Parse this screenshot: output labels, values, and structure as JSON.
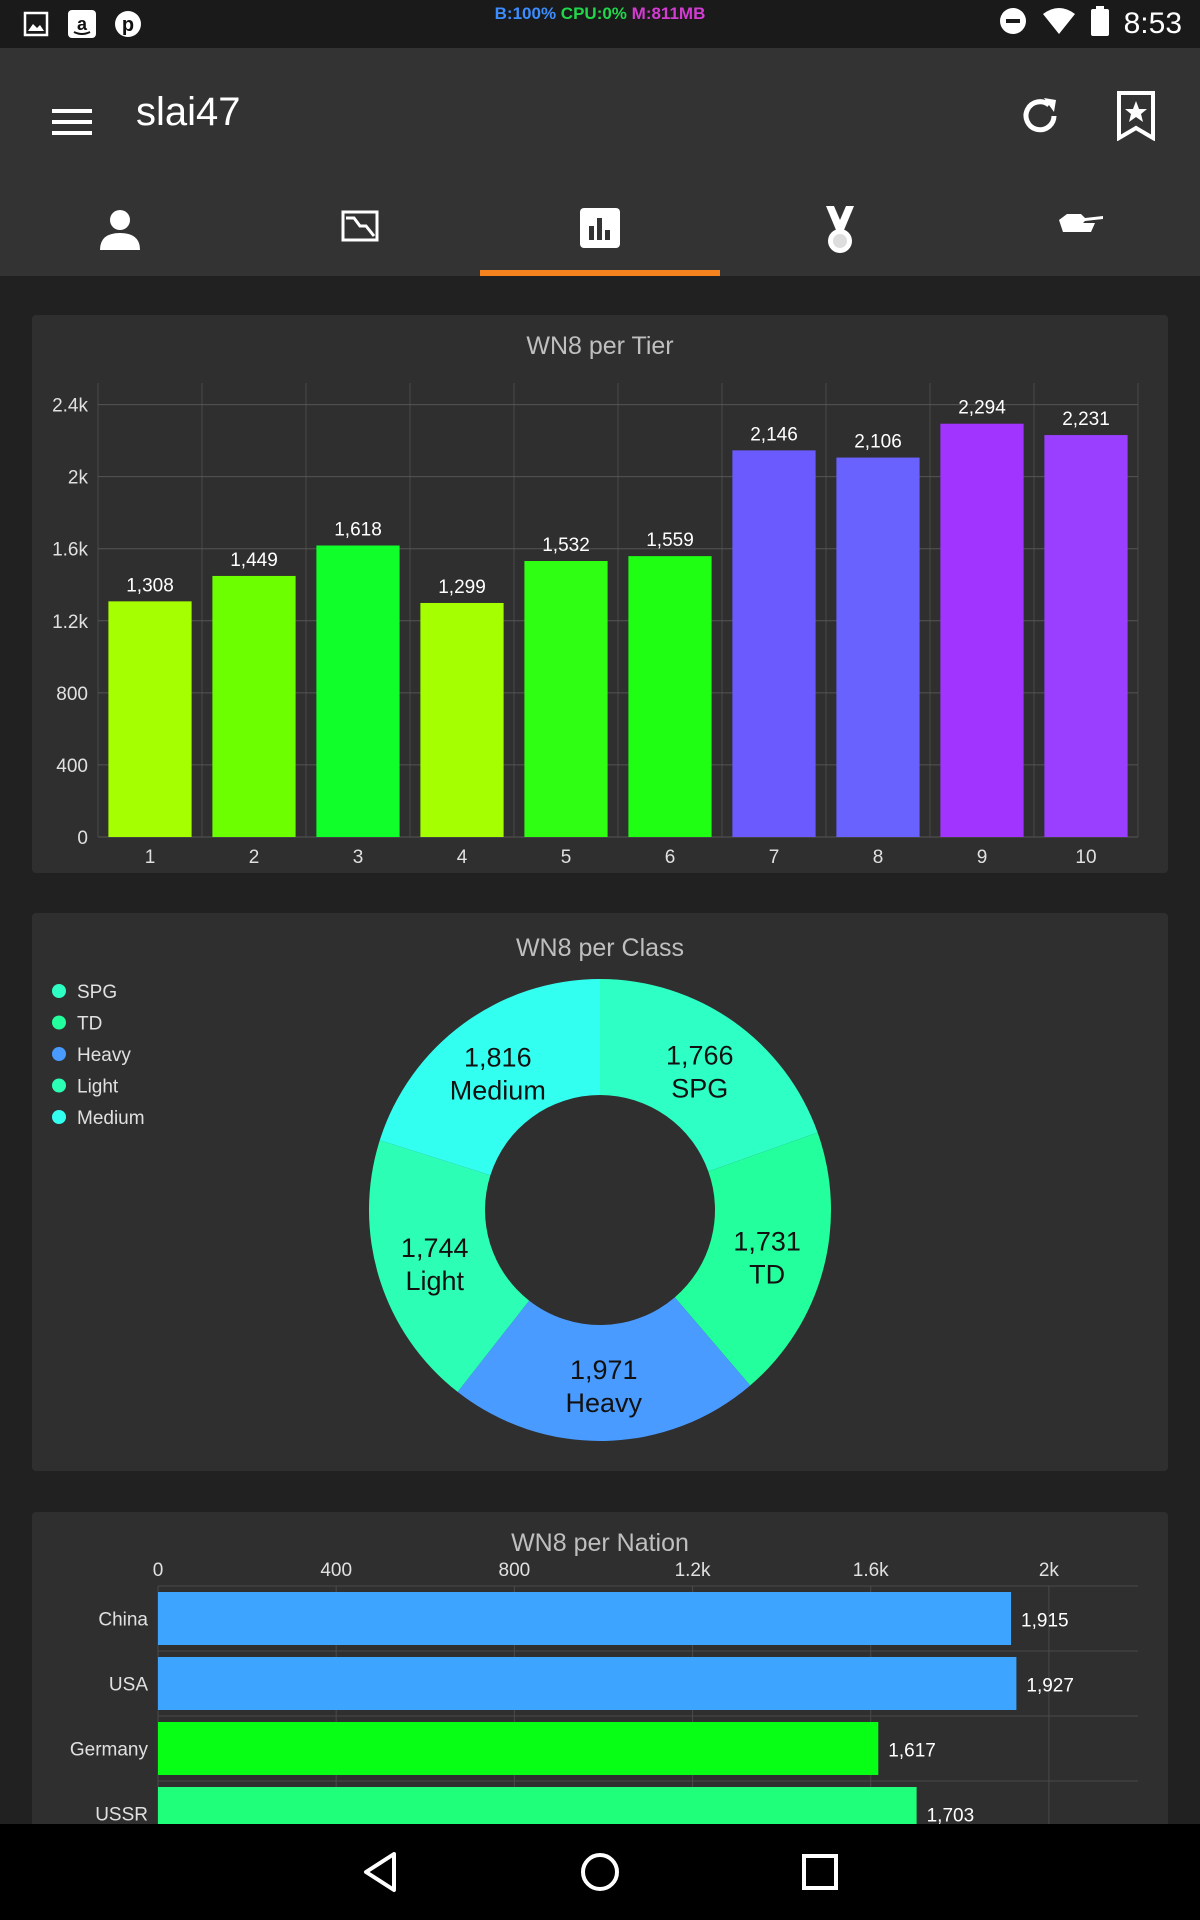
{
  "status_bar": {
    "monitor": {
      "b": "B:100%",
      "cpu": "CPU:0%",
      "m": "M:811MB"
    },
    "time": "8:53",
    "left_icons": [
      "image-icon",
      "amazon-icon",
      "pinterest-icon"
    ],
    "right_icons": [
      "dnd-icon",
      "wifi-icon",
      "battery-icon"
    ]
  },
  "app_bar": {
    "title": "slai47",
    "tabs": [
      {
        "name": "profile-icon"
      },
      {
        "name": "graph-icon"
      },
      {
        "name": "bar-chart-icon",
        "active": true
      },
      {
        "name": "medal-icon"
      },
      {
        "name": "tank-icon"
      }
    ],
    "accent_color": "#f5821f"
  },
  "chart_data": [
    {
      "type": "bar",
      "title": "WN8 per Tier",
      "categories": [
        "1",
        "2",
        "3",
        "4",
        "5",
        "6",
        "7",
        "8",
        "9",
        "10"
      ],
      "values": [
        1308,
        1449,
        1618,
        1299,
        1532,
        1559,
        2146,
        2106,
        2294,
        2231
      ],
      "value_labels": [
        "1,308",
        "1,449",
        "1,618",
        "1,299",
        "1,532",
        "1,559",
        "2,146",
        "2,106",
        "2,294",
        "2,231"
      ],
      "colors": [
        "#a6ff00",
        "#6cff00",
        "#10ff2a",
        "#a6ff00",
        "#2fff12",
        "#1eff13",
        "#6b5bff",
        "#6a62ff",
        "#a234ff",
        "#9a3fff"
      ],
      "yticks": [
        "0",
        "400",
        "800",
        "1.2k",
        "1.6k",
        "2k",
        "2.4k"
      ],
      "ylim": [
        0,
        2520
      ],
      "grid": true
    },
    {
      "type": "pie",
      "title": "WN8 per Class",
      "donut": true,
      "slices": [
        {
          "label": "SPG",
          "value": 1766,
          "value_label": "1,766",
          "color": "#2effc4"
        },
        {
          "label": "TD",
          "value": 1731,
          "value_label": "1,731",
          "color": "#22ff9c"
        },
        {
          "label": "Heavy",
          "value": 1971,
          "value_label": "1,971",
          "color": "#4a9bff"
        },
        {
          "label": "Light",
          "value": 1744,
          "value_label": "1,744",
          "color": "#2cffb5"
        },
        {
          "label": "Medium",
          "value": 1816,
          "value_label": "1,816",
          "color": "#33fff0"
        }
      ],
      "legend": [
        "SPG",
        "TD",
        "Heavy",
        "Light",
        "Medium"
      ],
      "legend_position": "top-left"
    },
    {
      "type": "bar",
      "orientation": "horizontal",
      "title": "WN8 per Nation",
      "categories": [
        "China",
        "USA",
        "Germany",
        "USSR"
      ],
      "values": [
        1915,
        1927,
        1617,
        1703
      ],
      "value_labels": [
        "1,915",
        "1,927",
        "1,617",
        "1,703"
      ],
      "colors": [
        "#3da5ff",
        "#3da5ff",
        "#06ff14",
        "#1fff7a"
      ],
      "xticks": [
        "0",
        "400",
        "800",
        "1.2k",
        "1.6k",
        "2k"
      ],
      "xlim": [
        0,
        2200
      ],
      "grid": true
    }
  ]
}
